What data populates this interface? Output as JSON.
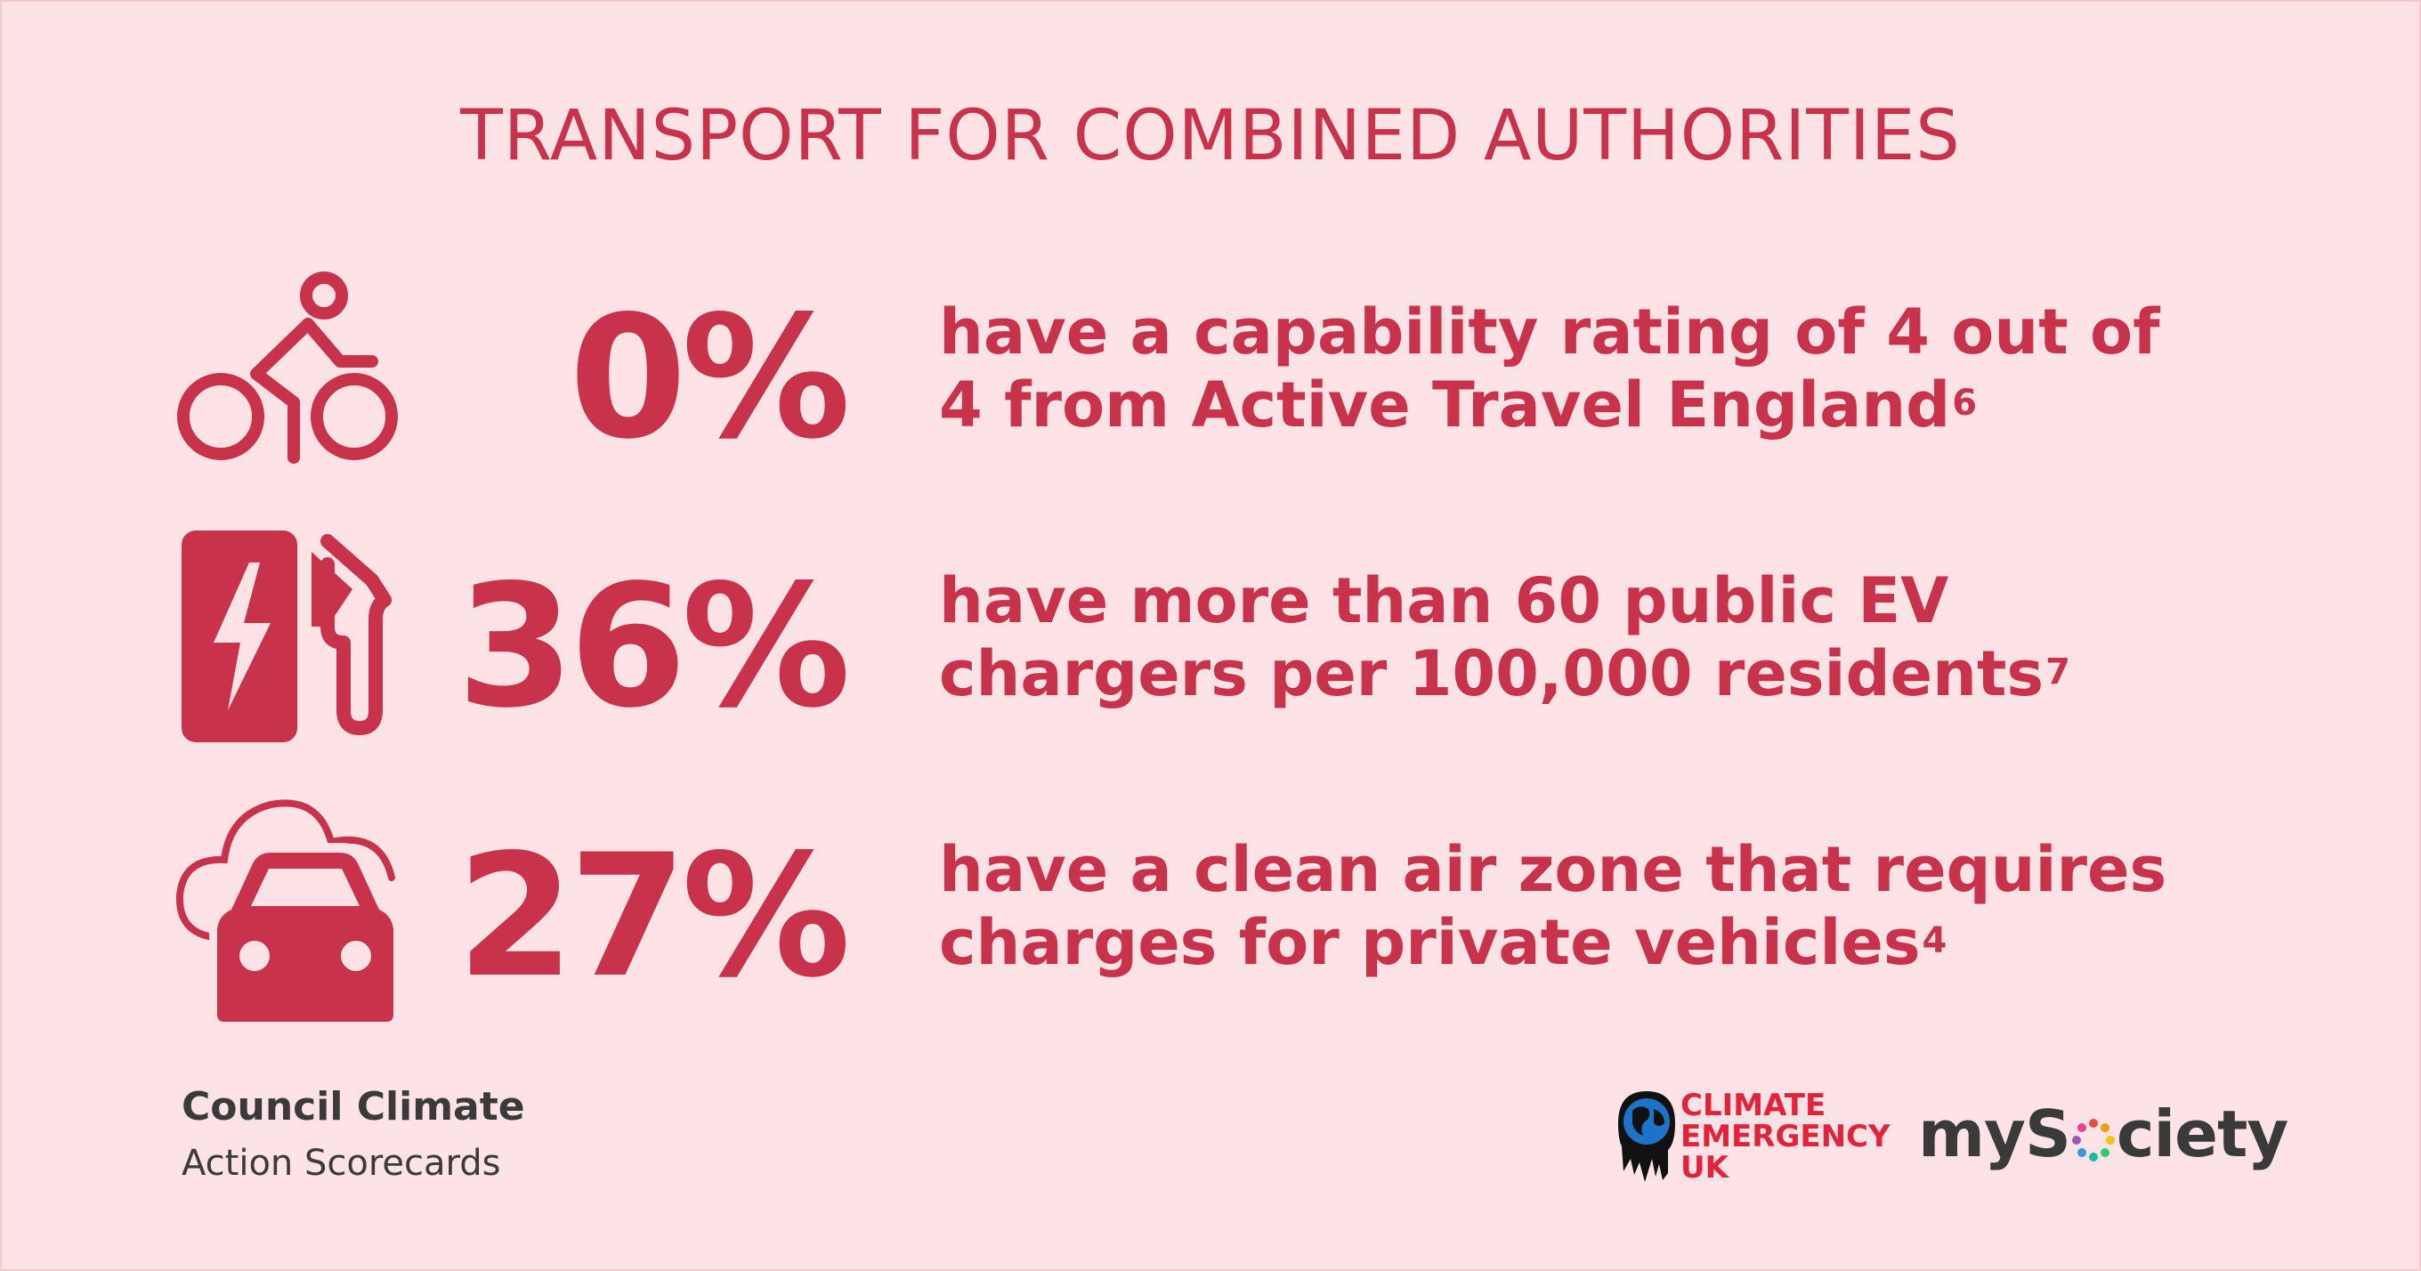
{
  "title": "TRANSPORT FOR COMBINED AUTHORITIES",
  "stats": [
    {
      "icon": "cyclist-icon",
      "value": "0%",
      "lines": [
        "have a capability rating of 4 out of",
        "4 from Active Travel England"
      ],
      "note": "6"
    },
    {
      "icon": "ev-charger-icon",
      "value": "36%",
      "lines": [
        "have more than 60 public EV",
        "chargers per 100,000 residents"
      ],
      "note": "7"
    },
    {
      "icon": "car-cloud-icon",
      "value": "27%",
      "lines": [
        "have a clean air zone that requires",
        "charges for private vehicles"
      ],
      "note": "4"
    }
  ],
  "footer": {
    "brand_line1": "Council Climate",
    "brand_line2": "Action Scorecards",
    "ceuk": [
      "CLIMATE",
      "EMERGENCY",
      "UK"
    ],
    "mysociety_prefix": "myS",
    "mysociety_suffix": "ciety"
  },
  "colors": {
    "background": "#fde3e6",
    "accent": "#c8334b",
    "text_dark": "#3a3a3a",
    "ceuk_red": "#e1243a"
  }
}
